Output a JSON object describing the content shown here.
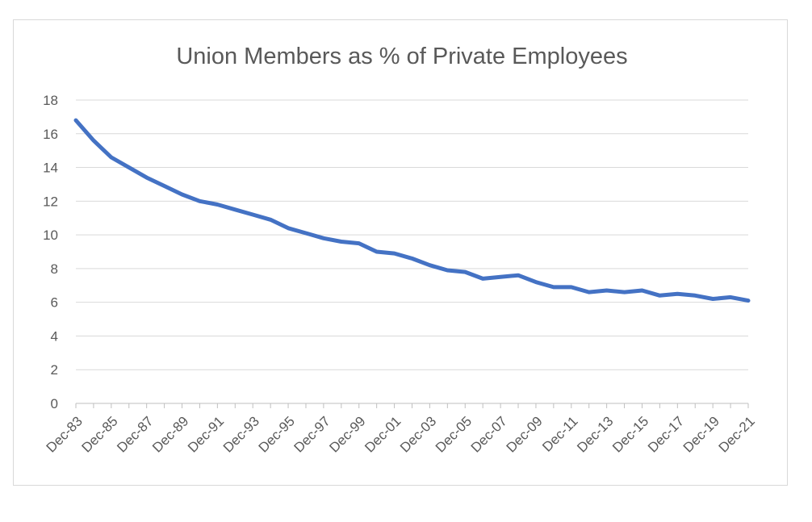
{
  "chart_data": {
    "type": "line",
    "title": "Union Members as % of Private Employees",
    "xlabel": "",
    "ylabel": "",
    "ylim": [
      0,
      18
    ],
    "yticks": [
      0,
      2,
      4,
      6,
      8,
      10,
      12,
      14,
      16,
      18
    ],
    "grid": true,
    "legend": "none",
    "line_color": "#4472c4",
    "categories": [
      "Dec-83",
      "Dec-84",
      "Dec-85",
      "Dec-86",
      "Dec-87",
      "Dec-88",
      "Dec-89",
      "Dec-90",
      "Dec-91",
      "Dec-92",
      "Dec-93",
      "Dec-94",
      "Dec-95",
      "Dec-96",
      "Dec-97",
      "Dec-98",
      "Dec-99",
      "Dec-00",
      "Dec-01",
      "Dec-02",
      "Dec-03",
      "Dec-04",
      "Dec-05",
      "Dec-06",
      "Dec-07",
      "Dec-08",
      "Dec-09",
      "Dec-10",
      "Dec-11",
      "Dec-12",
      "Dec-13",
      "Dec-14",
      "Dec-15",
      "Dec-16",
      "Dec-17",
      "Dec-18",
      "Dec-19",
      "Dec-20",
      "Dec-21"
    ],
    "tick_labels": [
      "Dec-83",
      "Dec-85",
      "Dec-87",
      "Dec-89",
      "Dec-91",
      "Dec-93",
      "Dec-95",
      "Dec-97",
      "Dec-99",
      "Dec-01",
      "Dec-03",
      "Dec-05",
      "Dec-07",
      "Dec-09",
      "Dec-11",
      "Dec-13",
      "Dec-15",
      "Dec-17",
      "Dec-19",
      "Dec-21"
    ],
    "series": [
      {
        "values": [
          16.8,
          15.6,
          14.6,
          14.0,
          13.4,
          12.9,
          12.4,
          12.0,
          11.8,
          11.5,
          11.2,
          10.9,
          10.4,
          10.1,
          9.8,
          9.6,
          9.5,
          9.0,
          8.9,
          8.6,
          8.2,
          7.9,
          7.8,
          7.4,
          7.5,
          7.6,
          7.2,
          6.9,
          6.9,
          6.6,
          6.7,
          6.6,
          6.7,
          6.4,
          6.5,
          6.4,
          6.2,
          6.3,
          6.1
        ]
      }
    ]
  }
}
